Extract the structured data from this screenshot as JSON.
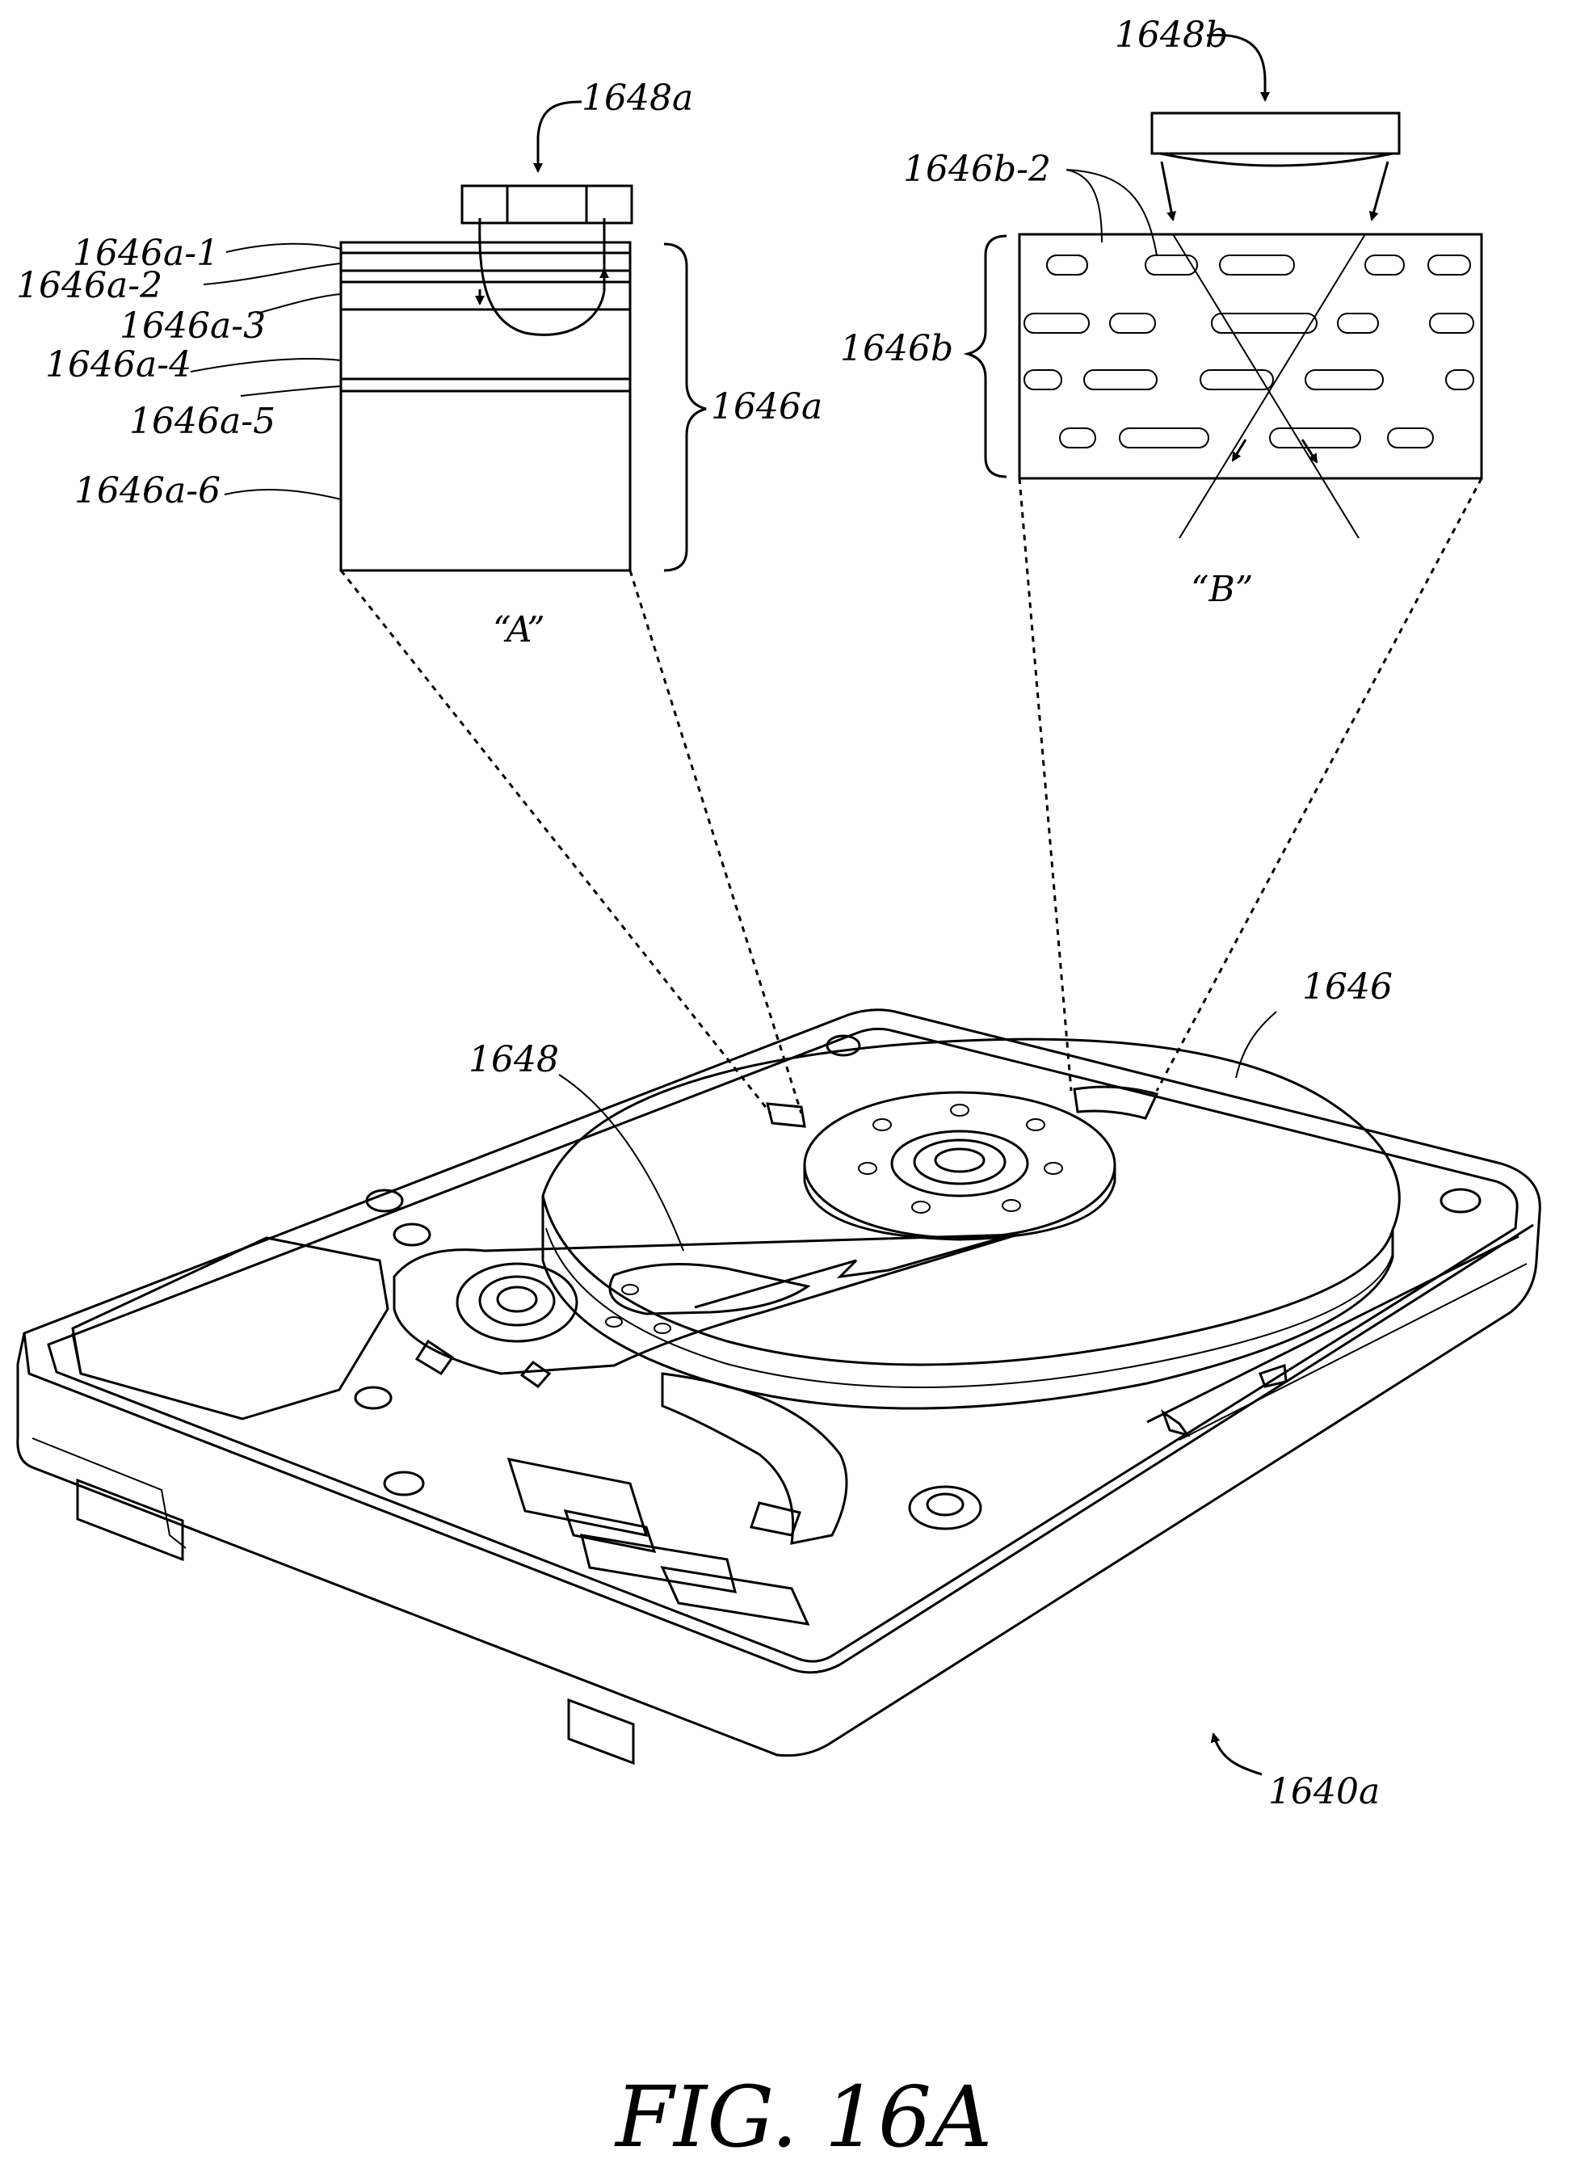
{
  "figure": {
    "caption": "FIG. 16A",
    "detail_a": {
      "tag": "“A”",
      "head_label": "1648a",
      "stack_label": "1646a",
      "layer_labels": [
        "1646a-1",
        "1646a-2",
        "1646a-3",
        "1646a-4",
        "1646a-5",
        "1646a-6"
      ]
    },
    "detail_b": {
      "tag": "“B”",
      "head_label": "1648b",
      "stack_label": "1646b",
      "grain_label": "1646b-2"
    },
    "drive": {
      "disk_label": "1646",
      "arm_label": "1648",
      "assembly_label": "1640a"
    }
  }
}
